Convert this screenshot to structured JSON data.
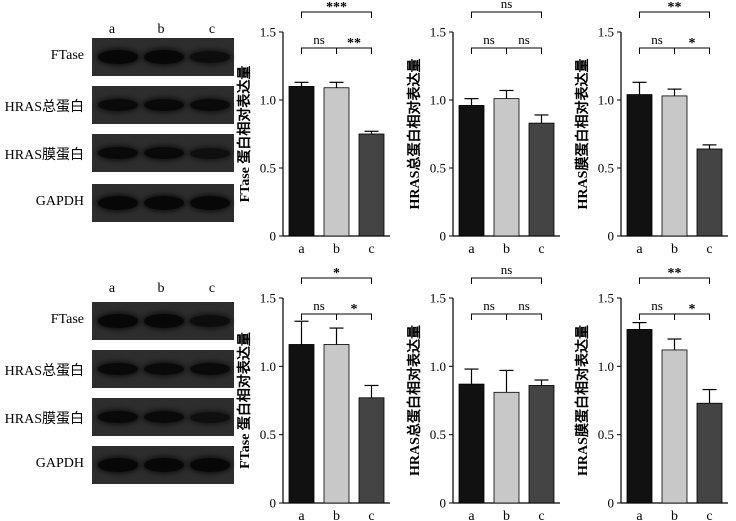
{
  "panels": [
    {
      "lanes": [
        "a",
        "b",
        "c"
      ],
      "blots": [
        {
          "label": "FTase",
          "band_intensity": [
            0.95,
            0.95,
            0.8
          ]
        },
        {
          "label": "HRAS总蛋白",
          "band_intensity": [
            0.85,
            0.9,
            0.85
          ]
        },
        {
          "label": "HRAS膜蛋白",
          "band_intensity": [
            0.9,
            0.9,
            0.75
          ]
        },
        {
          "label": "GAPDH",
          "band_intensity": [
            0.95,
            0.95,
            0.95
          ]
        }
      ]
    },
    {
      "lanes": [
        "a",
        "b",
        "c"
      ],
      "blots": [
        {
          "label": "FTase",
          "band_intensity": [
            0.95,
            0.95,
            0.8
          ]
        },
        {
          "label": "HRAS总蛋白",
          "band_intensity": [
            0.9,
            0.85,
            0.85
          ]
        },
        {
          "label": "HRAS膜蛋白",
          "band_intensity": [
            0.9,
            0.85,
            0.75
          ]
        },
        {
          "label": "GAPDH",
          "band_intensity": [
            0.95,
            0.95,
            0.95
          ]
        }
      ]
    }
  ],
  "chart_data": [
    {
      "type": "bar",
      "ylabel": "FTase 蛋白相对表达量",
      "categories": [
        "a",
        "b",
        "c"
      ],
      "values": [
        1.1,
        1.09,
        0.75
      ],
      "errors": [
        0.03,
        0.04,
        0.02
      ],
      "ylim": [
        0,
        1.5
      ],
      "yticks": [
        "0",
        "0.5",
        "1.0",
        "1.5"
      ],
      "colors": [
        "#111111",
        "#c8c8c8",
        "#444444"
      ],
      "comparisons": [
        {
          "from": 0,
          "to": 1,
          "label": "ns"
        },
        {
          "from": 1,
          "to": 2,
          "label": "**"
        },
        {
          "from": 0,
          "to": 2,
          "label": "***"
        }
      ]
    },
    {
      "type": "bar",
      "ylabel": "HRAS总蛋白相对表达量",
      "categories": [
        "a",
        "b",
        "c"
      ],
      "values": [
        0.96,
        1.01,
        0.83
      ],
      "errors": [
        0.05,
        0.06,
        0.06
      ],
      "ylim": [
        0,
        1.5
      ],
      "yticks": [
        "0",
        "0.5",
        "1.0",
        "1.5"
      ],
      "colors": [
        "#111111",
        "#c8c8c8",
        "#444444"
      ],
      "comparisons": [
        {
          "from": 0,
          "to": 1,
          "label": "ns"
        },
        {
          "from": 1,
          "to": 2,
          "label": "ns"
        },
        {
          "from": 0,
          "to": 2,
          "label": "ns"
        }
      ]
    },
    {
      "type": "bar",
      "ylabel": "HRAS膜蛋白相对表达量",
      "categories": [
        "a",
        "b",
        "c"
      ],
      "values": [
        1.04,
        1.03,
        0.64
      ],
      "errors": [
        0.09,
        0.05,
        0.03
      ],
      "ylim": [
        0,
        1.5
      ],
      "yticks": [
        "0",
        "0.5",
        "1.0",
        "1.5"
      ],
      "colors": [
        "#111111",
        "#c8c8c8",
        "#444444"
      ],
      "comparisons": [
        {
          "from": 0,
          "to": 1,
          "label": "ns"
        },
        {
          "from": 1,
          "to": 2,
          "label": "*"
        },
        {
          "from": 0,
          "to": 2,
          "label": "**"
        }
      ]
    },
    {
      "type": "bar",
      "ylabel": "FTase 蛋白相对表达量",
      "categories": [
        "a",
        "b",
        "c"
      ],
      "values": [
        1.16,
        1.16,
        0.77
      ],
      "errors": [
        0.17,
        0.12,
        0.09
      ],
      "ylim": [
        0,
        1.5
      ],
      "yticks": [
        "0",
        "0.5",
        "1.0",
        "1.5"
      ],
      "colors": [
        "#111111",
        "#c8c8c8",
        "#444444"
      ],
      "comparisons": [
        {
          "from": 0,
          "to": 1,
          "label": "ns"
        },
        {
          "from": 1,
          "to": 2,
          "label": "*"
        },
        {
          "from": 0,
          "to": 2,
          "label": "*"
        }
      ]
    },
    {
      "type": "bar",
      "ylabel": "HRAS总蛋白相对表达量",
      "categories": [
        "a",
        "b",
        "c"
      ],
      "values": [
        0.87,
        0.81,
        0.86
      ],
      "errors": [
        0.11,
        0.16,
        0.04
      ],
      "ylim": [
        0,
        1.5
      ],
      "yticks": [
        "0",
        "0.5",
        "1.0",
        "1.5"
      ],
      "colors": [
        "#111111",
        "#c8c8c8",
        "#444444"
      ],
      "comparisons": [
        {
          "from": 0,
          "to": 1,
          "label": "ns"
        },
        {
          "from": 1,
          "to": 2,
          "label": "ns"
        },
        {
          "from": 0,
          "to": 2,
          "label": "ns"
        }
      ]
    },
    {
      "type": "bar",
      "ylabel": "HRAS膜蛋白相对表达量",
      "categories": [
        "a",
        "b",
        "c"
      ],
      "values": [
        1.27,
        1.12,
        0.73
      ],
      "errors": [
        0.05,
        0.08,
        0.1
      ],
      "ylim": [
        0,
        1.5
      ],
      "yticks": [
        "0",
        "0.5",
        "1.0",
        "1.5"
      ],
      "colors": [
        "#111111",
        "#c8c8c8",
        "#444444"
      ],
      "comparisons": [
        {
          "from": 0,
          "to": 1,
          "label": "ns"
        },
        {
          "from": 1,
          "to": 2,
          "label": "*"
        },
        {
          "from": 0,
          "to": 2,
          "label": "**"
        }
      ]
    }
  ]
}
